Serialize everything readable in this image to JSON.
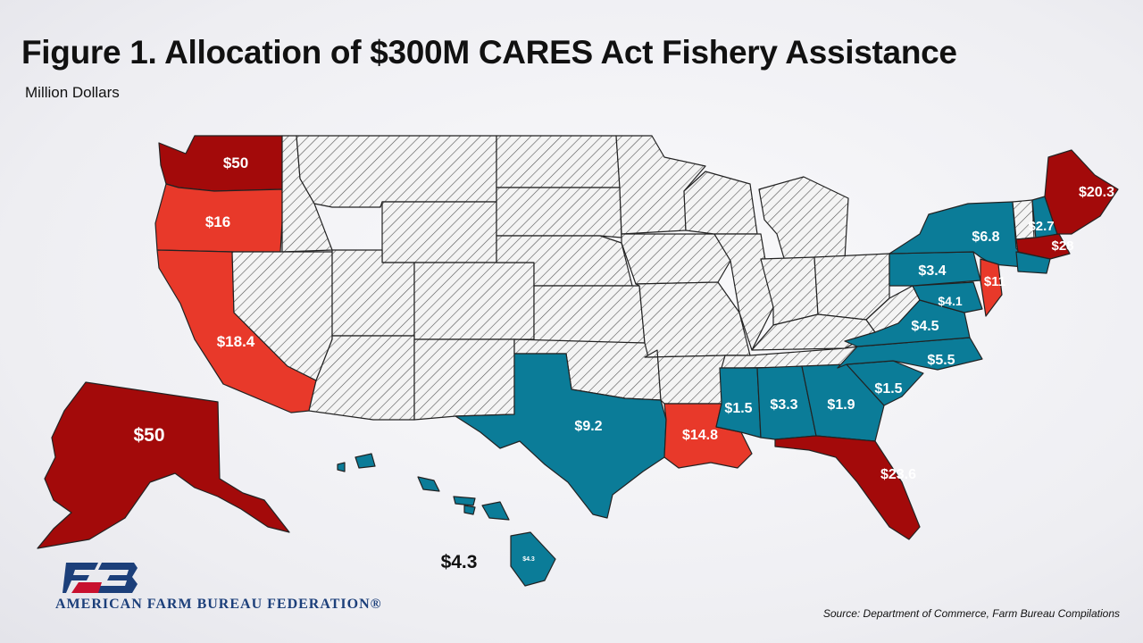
{
  "title": "Figure 1. Allocation of $300M CARES Act Fishery Assistance",
  "subtitle": "Million Dollars",
  "colors": {
    "high": "#a30a0a",
    "mid": "#e8392a",
    "low": "#0b7c98",
    "none_fill": "#f4f4f4",
    "hatch": "#555555",
    "border": "#222222"
  },
  "states": {
    "WA": "$50",
    "OR": "$16",
    "CA": "$18.4",
    "AK": "$50",
    "HI": "$4.3",
    "HI_inset": "$4.3",
    "TX": "$9.2",
    "LA": "$14.8",
    "MS": "$1.5",
    "AL": "$3.3",
    "GA": "$1.9",
    "SC": "$1.5",
    "NC": "$5.5",
    "VA": "$4.5",
    "MD": "$4.1",
    "PA": "$3.4",
    "NY": "$6.8",
    "NJ": "$11",
    "NH": "$2.7",
    "MA": "$28",
    "ME": "$20.3",
    "FL": "$23.6"
  },
  "org": "AMERICAN FARM BUREAU FEDERATION®",
  "source": "Source: Department of Commerce, Farm Bureau Compilations"
}
